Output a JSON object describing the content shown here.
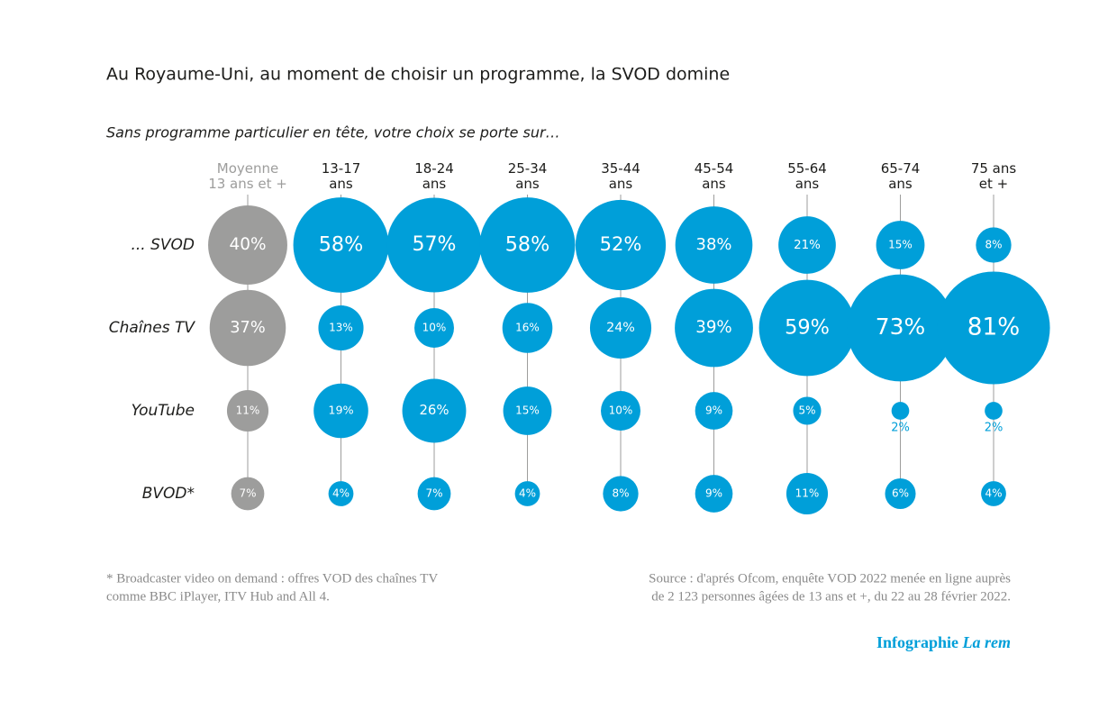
{
  "chart_data": {
    "type": "bubble_grid",
    "title": "Au Royaume-Uni, au moment de choisir un programme, la SVOD domine",
    "subtitle": "Sans programme particulier en tête, votre choix se porte sur…",
    "categories": [
      "Moyenne\n13 ans et +",
      "13-17\nans",
      "18-24\nans",
      "25-34\nans",
      "35-44\nans",
      "45-54\nans",
      "55-64\nans",
      "65-74\nans",
      "75 ans\net +"
    ],
    "category_colors": [
      "#9d9d9c",
      "#009fd9",
      "#009fd9",
      "#009fd9",
      "#009fd9",
      "#009fd9",
      "#009fd9",
      "#009fd9",
      "#009fd9"
    ],
    "series": [
      {
        "name": "... SVOD",
        "values": [
          40,
          58,
          57,
          58,
          52,
          38,
          21,
          15,
          8
        ],
        "value_labels": [
          "40%",
          "58%",
          "57%",
          "58%",
          "52%",
          "38%",
          "21%",
          "15%",
          "8%"
        ]
      },
      {
        "name": "Chaînes TV",
        "values": [
          37,
          13,
          10,
          16,
          24,
          39,
          59,
          73,
          81
        ],
        "value_labels": [
          "37%",
          "13%",
          "10%",
          "16%",
          "24%",
          "39%",
          "59%",
          "73%",
          "81%"
        ]
      },
      {
        "name": "YouTube",
        "values": [
          11,
          19,
          26,
          15,
          10,
          9,
          5,
          2,
          2
        ],
        "value_labels": [
          "11%",
          "19%",
          "26%",
          "15%",
          "10%",
          "9%",
          "5%",
          "2%",
          "2%"
        ]
      },
      {
        "name": "BVOD*",
        "values": [
          7,
          4,
          7,
          4,
          8,
          9,
          11,
          6,
          4
        ],
        "value_labels": [
          "7%",
          "4%",
          "7%",
          "4%",
          "8%",
          "9%",
          "11%",
          "6%",
          "4%"
        ]
      }
    ],
    "footnote": [
      "* Broadcaster video on demand : offres VOD des chaînes TV",
      "comme BBC iPlayer, ITV Hub and All 4."
    ],
    "source": [
      "Source : d'aprés Ofcom, enquête VOD 2022 menée en ligne auprès",
      "de 2 123 personnes âgées de 13 ans et +, du 22 au 28 février 2022."
    ],
    "credit": {
      "text": "Infographie",
      "emphasis": "La rem"
    }
  }
}
